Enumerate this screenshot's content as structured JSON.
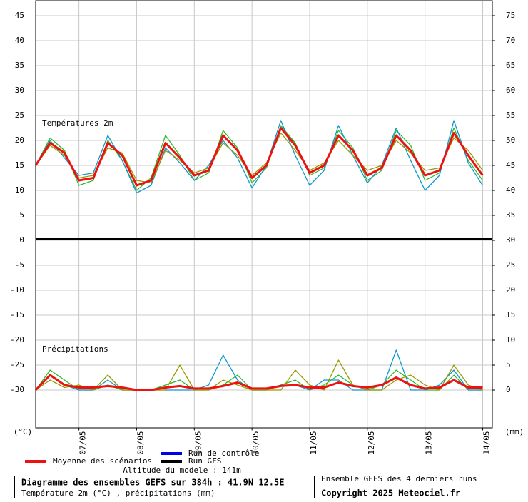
{
  "chart_data": {
    "type": "line",
    "temp_label": "Températures 2m",
    "precip_label": "Précipitations",
    "y_unit": "(°C)",
    "y2_unit": "(mm)",
    "altitude": "Altitude du modele : 141m",
    "title": "Diagramme des ensembles GEFS sur 384h : 41.9N 12.5E",
    "subtitle": "Température 2m (°C) , précipitations (mm)",
    "ensemble_note": "Ensemble GEFS des 4 derniers runs",
    "copyright": "Copyright 2025 Meteociel.fr",
    "grid": true,
    "x": [
      0,
      6,
      12,
      18,
      24,
      30,
      36,
      42,
      48,
      54,
      60,
      66,
      72,
      78,
      84,
      90,
      96,
      102,
      108,
      114,
      120,
      126,
      132,
      138,
      144,
      150,
      156,
      162,
      168,
      174,
      180,
      186
    ],
    "xlim": [
      0,
      190
    ],
    "xticks": [
      {
        "value": 18,
        "label": "07/05"
      },
      {
        "value": 42,
        "label": "08/05"
      },
      {
        "value": 66,
        "label": "09/05"
      },
      {
        "value": 90,
        "label": "10/05"
      },
      {
        "value": 114,
        "label": "11/05"
      },
      {
        "value": 138,
        "label": "12/05"
      },
      {
        "value": 162,
        "label": "13/05"
      },
      {
        "value": 186,
        "label": "14/05"
      }
    ],
    "ylim": [
      -37.5,
      48
    ],
    "yticks": [
      -30,
      -25,
      -20,
      -15,
      -10,
      -5,
      0,
      5,
      10,
      15,
      20,
      25,
      30,
      35,
      40,
      45
    ],
    "y2lim": [
      -7.5,
      78
    ],
    "y2ticks": [
      0,
      5,
      10,
      15,
      20,
      25,
      30,
      35,
      40,
      45,
      50,
      55,
      60,
      65,
      70,
      75
    ],
    "members": [
      {
        "color": "#22bb22",
        "values": [
          15,
          20.5,
          18,
          11,
          12,
          20,
          16,
          10,
          12.5,
          21,
          17,
          12,
          13.5,
          22,
          18.5,
          11.5,
          14.5,
          23,
          19.5,
          13,
          14.5,
          22,
          18.5,
          12,
          14,
          22,
          19,
          12,
          13.5,
          22.5,
          16,
          12
        ],
        "precip": [
          0,
          4,
          2,
          0,
          0,
          1,
          0,
          0,
          0,
          1,
          2,
          0,
          0,
          1,
          3,
          0,
          0,
          1,
          2,
          0,
          1,
          3,
          1,
          0,
          1,
          4,
          2,
          0,
          0,
          3,
          0,
          0
        ]
      }
    ],
    "series": [
      {
        "name": "Run de contrôle",
        "color": "#1199cc",
        "values": [
          15,
          20,
          16.5,
          13,
          13.5,
          21,
          16,
          9.5,
          11,
          18.5,
          15.5,
          12,
          15,
          20,
          16.5,
          10.5,
          15,
          24,
          17,
          11,
          14,
          23,
          17,
          11.5,
          15,
          22.5,
          16,
          10,
          13,
          24,
          15.5,
          11
        ],
        "precip": [
          0,
          3,
          1,
          0,
          0,
          2,
          0,
          0,
          0,
          0,
          0,
          0,
          1,
          7,
          2,
          0,
          0,
          1,
          1,
          0,
          2,
          2,
          0,
          0,
          0,
          8,
          0,
          0,
          1,
          4,
          0,
          0
        ]
      },
      {
        "name": "Run GFS",
        "color": "#999900",
        "values": [
          15,
          19,
          17,
          12.5,
          13,
          18.5,
          17.5,
          12,
          11.5,
          18,
          16,
          13.5,
          14.5,
          19.5,
          17,
          13,
          15.5,
          21.5,
          18,
          14,
          15.5,
          20,
          17,
          14,
          15,
          20,
          17.5,
          14,
          14.5,
          20.5,
          18,
          14
        ],
        "precip": [
          0,
          2,
          0.5,
          1,
          0,
          3,
          0,
          0,
          0,
          0,
          5,
          0,
          0,
          2,
          1,
          0,
          0,
          0,
          4,
          1,
          0,
          6,
          1,
          0,
          0,
          2,
          3,
          1,
          0,
          5,
          1,
          0
        ]
      },
      {
        "name": "Moyenne des scénarios",
        "color": "#ee1111",
        "values": [
          15,
          19.5,
          17.5,
          12,
          12.5,
          19.5,
          17,
          11,
          12,
          19.5,
          16.5,
          13,
          14,
          21,
          18,
          12.5,
          15,
          22.5,
          19,
          13.5,
          15,
          21,
          18,
          13,
          14.5,
          21,
          18,
          13,
          14,
          21.5,
          17,
          13
        ],
        "precip": [
          0,
          3,
          1,
          0.5,
          0.5,
          0.8,
          0.5,
          0,
          0,
          0.5,
          0.8,
          0.3,
          0.3,
          0.8,
          1.5,
          0.3,
          0.3,
          0.8,
          1,
          0.5,
          0.5,
          1.5,
          0.8,
          0.5,
          1,
          2.5,
          1,
          0.3,
          0.5,
          2,
          0.5,
          0.5
        ]
      }
    ],
    "legend_colors": [
      "#0000ee",
      "#000000",
      "#ee1111"
    ]
  }
}
